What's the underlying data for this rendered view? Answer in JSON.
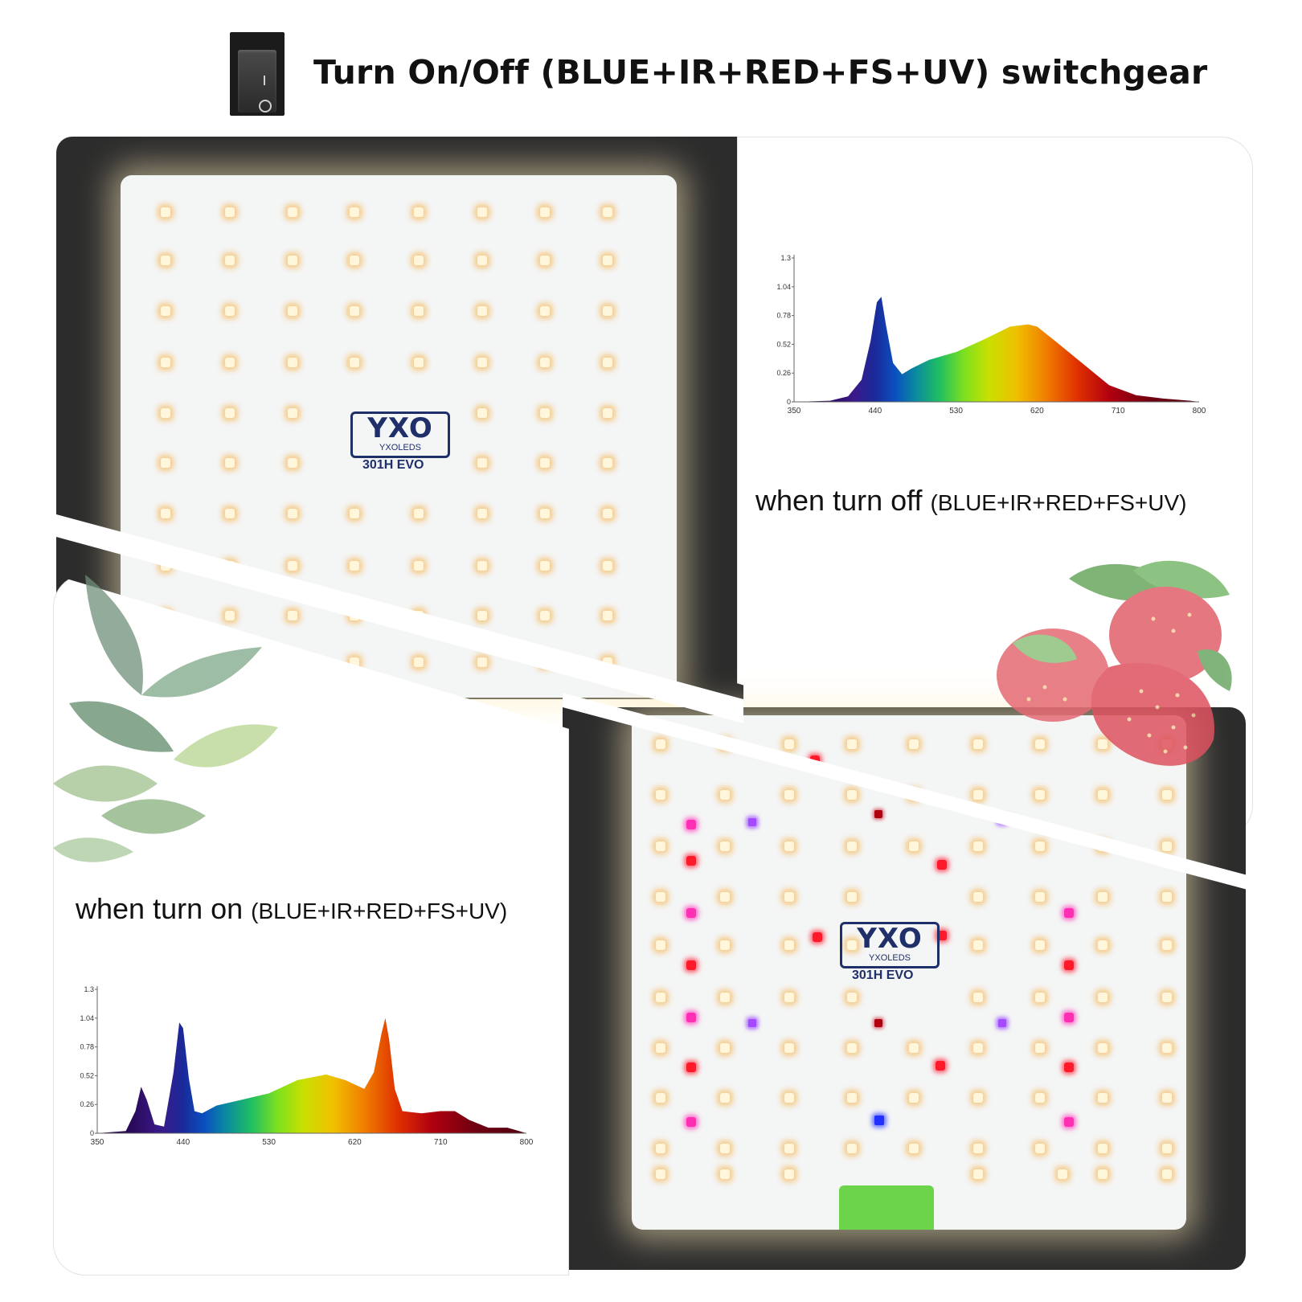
{
  "header": {
    "title": "Turn On/Off (BLUE+IR+RED+FS+UV) switchgear",
    "switch_icon": "rocker-switch-icon"
  },
  "off_section": {
    "caption_main": "when turn off",
    "caption_paren": "(BLUE+IR+RED+FS+UV)",
    "decor_icon": "strawberry-image"
  },
  "on_section": {
    "caption_main": "when turn on",
    "caption_paren": "(BLUE+IR+RED+FS+UV)",
    "decor_icon": "plant-leaf-image"
  },
  "board": {
    "brand_logo": "YXO",
    "brand_name": "YXOLEDS",
    "model": "301H EVO"
  },
  "chart_data": [
    {
      "type": "area",
      "x_ticks": [
        350,
        440,
        530,
        620,
        710,
        800
      ],
      "y_ticks": [
        0,
        0.26,
        0.52,
        0.78,
        1.04,
        1.3
      ],
      "xlim": [
        350,
        800
      ],
      "ylim": [
        0,
        1.3
      ],
      "x": [
        350,
        390,
        410,
        425,
        435,
        442,
        447,
        452,
        460,
        470,
        480,
        500,
        530,
        560,
        590,
        610,
        620,
        640,
        670,
        700,
        730,
        760,
        790,
        800
      ],
      "values": [
        0,
        0.01,
        0.05,
        0.2,
        0.55,
        0.9,
        0.95,
        0.7,
        0.35,
        0.25,
        0.3,
        0.38,
        0.45,
        0.56,
        0.68,
        0.7,
        0.68,
        0.55,
        0.35,
        0.15,
        0.06,
        0.03,
        0.01,
        0
      ]
    },
    {
      "type": "area",
      "x_ticks": [
        350,
        440,
        530,
        620,
        710,
        800
      ],
      "y_ticks": [
        0,
        0.26,
        0.52,
        0.78,
        1.04,
        1.3
      ],
      "xlim": [
        350,
        800
      ],
      "ylim": [
        0,
        1.3
      ],
      "x": [
        350,
        380,
        390,
        396,
        402,
        410,
        420,
        430,
        436,
        440,
        446,
        452,
        460,
        475,
        500,
        530,
        560,
        590,
        610,
        630,
        640,
        648,
        652,
        656,
        662,
        670,
        690,
        710,
        725,
        740,
        760,
        780,
        800
      ],
      "values": [
        0,
        0.02,
        0.2,
        0.42,
        0.3,
        0.08,
        0.06,
        0.55,
        1.0,
        0.95,
        0.5,
        0.2,
        0.18,
        0.25,
        0.3,
        0.36,
        0.48,
        0.53,
        0.48,
        0.4,
        0.55,
        0.9,
        1.04,
        0.85,
        0.4,
        0.2,
        0.18,
        0.2,
        0.2,
        0.12,
        0.05,
        0.05,
        0
      ]
    }
  ]
}
